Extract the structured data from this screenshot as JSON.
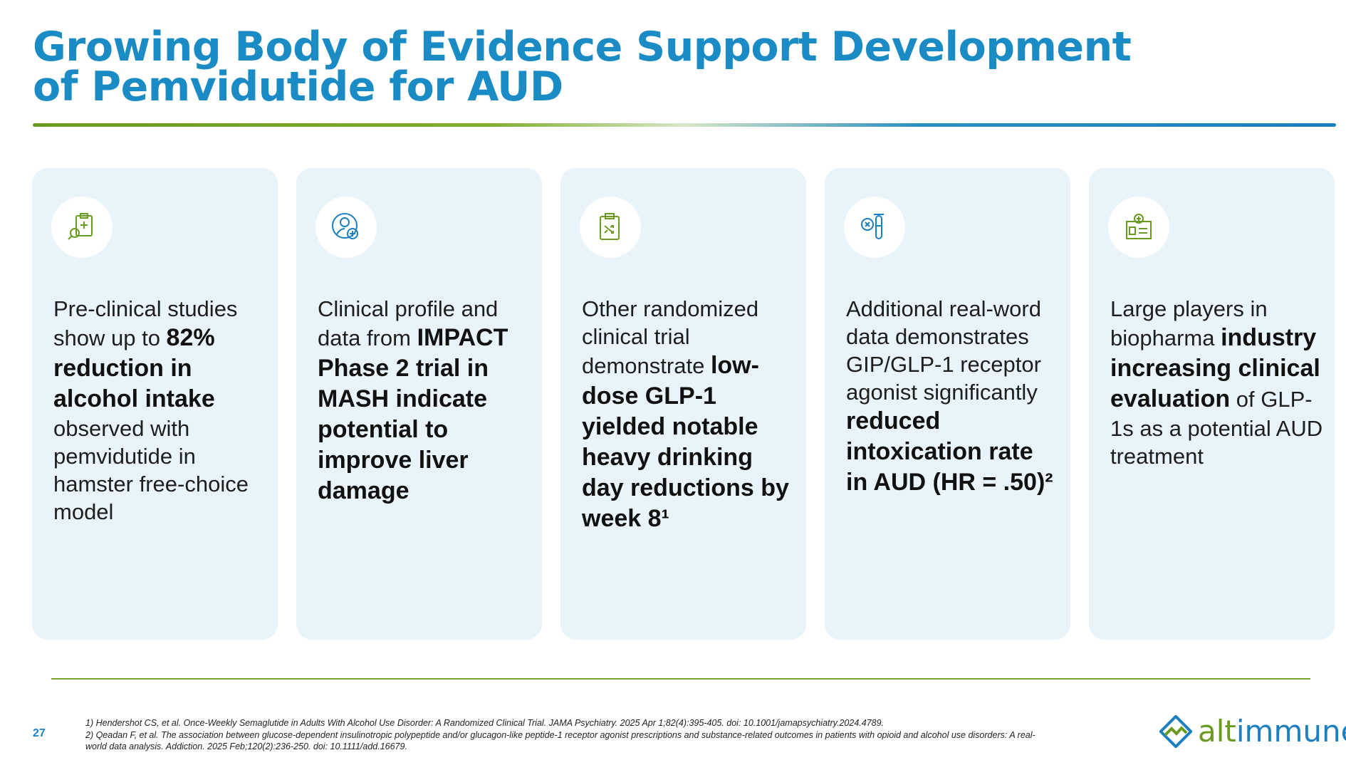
{
  "header": {
    "title_lines": [
      "Growing Body of Evidence Support Development",
      "of Pemvidutide for AUD"
    ]
  },
  "cards": [
    {
      "parts": [
        {
          "text": "Pre-clinical studies show up to ",
          "bold": false
        },
        {
          "text": "82% reduction in alcohol intake",
          "bold": true
        },
        {
          "text": " observed with pemvidutide in hamster free-choice model",
          "bold": false
        }
      ]
    },
    {
      "parts": [
        {
          "text": "Clinical profile and data from ",
          "bold": false
        },
        {
          "text": "IMPACT Phase 2 trial in MASH indicate potential to improve liver damage",
          "bold": true
        }
      ]
    },
    {
      "parts": [
        {
          "text": "Other randomized clinical trial demonstrate ",
          "bold": false
        },
        {
          "text": "low-dose GLP-1 yielded notable heavy drinking day reductions by week 8¹",
          "bold": true
        }
      ]
    },
    {
      "parts": [
        {
          "text": "Additional real-word data demonstrates GIP/GLP-1 receptor agonist significantly ",
          "bold": false
        },
        {
          "text": "reduced intoxication rate in AUD (HR = .50)²",
          "bold": true
        }
      ]
    },
    {
      "parts": [
        {
          "text": "Large players in biopharma ",
          "bold": false
        },
        {
          "text": "industry increasing clinical evaluation",
          "bold": true
        },
        {
          "text": " of GLP-1s as a potential AUD treatment",
          "bold": false
        }
      ]
    }
  ],
  "footer": {
    "page_number": "27",
    "footnote_lines": [
      "1) Hendershot CS, et al. Once-Weekly Semaglutide in Adults With Alcohol Use Disorder: A Randomized Clinical Trial. JAMA Psychiatry. 2025 Apr 1;82(4):395-405. doi: 10.1001/jamapsychiatry.2024.4789.",
      "2) Qeadan F, et al. The association between glucose-dependent insulinotropic polypeptide and/or glucagon-like peptide-1 receptor agonist prescriptions and substance-related outcomes in patients with opioid and alcohol use disorders: A real-",
      "world data analysis. Addiction. 2025 Feb;120(2):236-250. doi: 10.1111/add.16679."
    ],
    "logo_parts": [
      "alt",
      "immune"
    ]
  }
}
